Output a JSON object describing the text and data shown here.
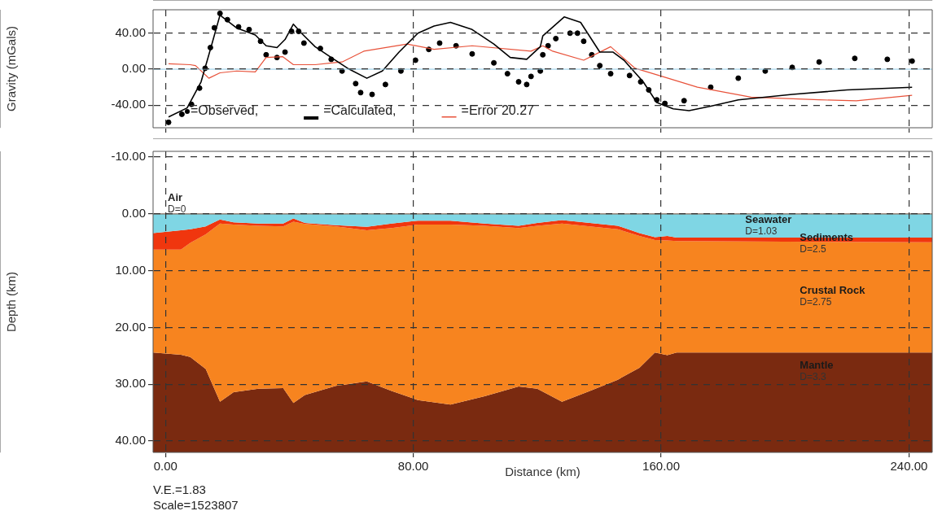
{
  "chart_data": [
    {
      "type": "line",
      "ylabel": "Gravity (mGals)",
      "xlim": [
        -4,
        247.5
      ],
      "ylim": [
        -65,
        66
      ],
      "xticks": [
        0,
        80,
        160,
        240
      ],
      "yticks": [
        {
          "value": -40,
          "label": "-40.00"
        },
        {
          "value": 0,
          "label": "0.00"
        },
        {
          "value": 40,
          "label": "40.00"
        }
      ],
      "tick_labels": "y",
      "grid": true,
      "legend": "bottom left",
      "ref_lines": [
        {
          "axis": "y",
          "value": 0,
          "color": "#8ecae6"
        }
      ],
      "series": [
        {
          "name": "=Observed,",
          "type": "scatter",
          "marker": "circle",
          "color": "#000000",
          "x": [
            1,
            5.3,
            8.4,
            11,
            12.8,
            14.5,
            15.8,
            17.6,
            20,
            23.6,
            27,
            30.7,
            32.5,
            36,
            38.6,
            40.7,
            43,
            44.7,
            50,
            53.5,
            57,
            61.4,
            63,
            66.7,
            71,
            76,
            80.7,
            85,
            88.5,
            93.8,
            99,
            106,
            110.4,
            114,
            116.6,
            118,
            121,
            121.8,
            123.5,
            126,
            130.6,
            133,
            135,
            137.6,
            140.2,
            143.7,
            149.8,
            153.4,
            156,
            158.6,
            161.2,
            167.4,
            176,
            184.9,
            193.6,
            202.3,
            211,
            222.5,
            233,
            241
          ],
          "values": [
            -59,
            -50,
            -39,
            -21,
            1,
            24,
            46,
            62,
            55,
            47,
            44,
            31,
            16,
            13,
            19,
            42,
            42,
            29,
            23,
            11,
            -2,
            -16,
            -26,
            -28,
            -17,
            -2,
            10,
            22,
            29,
            26,
            17,
            7,
            -5,
            -14,
            -17,
            -8,
            -2,
            16,
            26,
            34,
            40,
            40,
            31,
            16,
            4,
            -5,
            -7,
            -14,
            -23,
            -34,
            -38,
            -35,
            -20,
            -10,
            -2,
            2,
            8,
            12,
            11,
            9
          ]
        },
        {
          "name": "=Calculated,",
          "type": "line",
          "color": "#000000",
          "x": [
            1,
            7,
            11.5,
            15,
            17.6,
            22.9,
            29,
            32.5,
            36,
            38.6,
            41.3,
            43.9,
            48.3,
            53.5,
            58.8,
            65,
            70,
            75.4,
            81.5,
            86.7,
            92,
            99,
            106,
            111.3,
            116.6,
            121,
            121.8,
            128.7,
            134,
            140.2,
            144.5,
            148,
            154.2,
            158.6,
            163.9,
            169,
            176,
            184.9,
            202.3,
            220,
            241
          ],
          "values": [
            -53,
            -43,
            -14,
            28,
            60,
            46,
            38,
            26,
            24,
            33,
            50,
            40,
            25,
            13,
            1,
            -10,
            -2,
            19,
            40,
            48,
            52,
            44,
            28,
            13,
            11,
            25,
            37,
            58,
            52,
            19,
            19,
            10,
            -14,
            -37,
            -44,
            -46,
            -41,
            -34,
            -28,
            -23,
            -20
          ]
        },
        {
          "name": "=Error 20.27",
          "type": "line",
          "color": "#e8523a",
          "x": [
            1,
            8,
            9.7,
            14,
            17.6,
            23,
            29,
            32.5,
            37.8,
            41.3,
            48.3,
            53.5,
            57,
            64,
            78,
            86.7,
            99,
            118,
            121.8,
            125,
            135,
            143.7,
            151.6,
            160.3,
            171.7,
            189,
            211,
            223,
            241
          ],
          "values": [
            6,
            5,
            4,
            -10,
            -4,
            -2,
            -3,
            13,
            14,
            5,
            5,
            7,
            8,
            20,
            28,
            22,
            26,
            20,
            26,
            20,
            10,
            25,
            1,
            -8,
            -20,
            -31,
            -34,
            -35,
            -29
          ]
        }
      ]
    },
    {
      "type": "area",
      "stacked": true,
      "xlabel": "Distance (km)",
      "ylabel": "Depth (km)",
      "xlim": [
        -4,
        247.5
      ],
      "ylim": [
        42,
        -11
      ],
      "xticks": [
        {
          "value": 0,
          "label": "0.00"
        },
        {
          "value": 80,
          "label": "80.00"
        },
        {
          "value": 160,
          "label": "160.00"
        },
        {
          "value": 240,
          "label": "240.00"
        }
      ],
      "yticks": [
        {
          "value": -10,
          "label": "-10.00"
        },
        {
          "value": 0,
          "label": "0.00"
        },
        {
          "value": 10,
          "label": "10.00"
        },
        {
          "value": 20,
          "label": "20.00"
        },
        {
          "value": 30,
          "label": "30.00"
        },
        {
          "value": 40,
          "label": "40.00"
        }
      ],
      "grid": true,
      "x": [
        -4,
        5,
        8,
        13,
        17.6,
        22,
        30,
        38,
        41.3,
        45,
        55,
        65,
        73,
        81.5,
        92,
        103,
        114,
        120,
        128,
        137,
        146,
        153,
        158,
        162,
        165,
        200,
        247.5
      ],
      "series": [
        {
          "name": "Air\nD=0",
          "type": "line",
          "color": "#8a6a5a",
          "x": [
            -4,
            247.5
          ],
          "values": [
            0,
            0
          ]
        },
        {
          "name": "Seawater\nD=1.03",
          "color": "#7fd6e4",
          "values": [
            3.4,
            2.9,
            2.7,
            2.2,
            1,
            1.5,
            1.7,
            1.7,
            0.8,
            1.6,
            2,
            2.3,
            1.7,
            1.2,
            1.2,
            1.7,
            2.1,
            1.6,
            1.1,
            1.6,
            2.1,
            3.4,
            4.1,
            3.9,
            4.2,
            4.2,
            4.2
          ]
        },
        {
          "name": "Sediments\nD=2.5",
          "color": "#f0360e",
          "values": [
            2.9,
            3.4,
            2.4,
            1.4,
            0.7,
            0.4,
            0.4,
            0.5,
            0.6,
            0.2,
            0.2,
            0.6,
            0.8,
            0.7,
            0.7,
            0.4,
            0.4,
            0.5,
            0.6,
            0.6,
            0.6,
            0.5,
            0.5,
            0.8,
            0.6,
            0.7,
            0.8
          ]
        },
        {
          "name": "Crustal Rock\nD=2.75",
          "color": "#f7841f",
          "values": [
            18.1,
            18.5,
            20.1,
            23.7,
            31.4,
            29.5,
            28.7,
            28.5,
            31.9,
            30.1,
            28.1,
            26.6,
            28.7,
            30.9,
            31.7,
            30,
            27.9,
            28.7,
            31.4,
            29,
            26.5,
            23.2,
            19.8,
            20.2,
            19.6,
            19.5,
            19.4
          ]
        },
        {
          "name": "Mantle\nD=3.3",
          "color": "#7a2a10",
          "values": [
            17.6,
            17.2,
            16.8,
            14.7,
            8.9,
            10.6,
            11.2,
            11.3,
            8.7,
            10.1,
            11.7,
            12.5,
            10.8,
            9.2,
            8.4,
            9.9,
            11.6,
            11.2,
            8.9,
            10.8,
            12.8,
            14.9,
            17.6,
            17.1,
            17.6,
            17.6,
            17.6
          ]
        }
      ],
      "annotations": [
        "V.E.=1.83",
        "Scale=1523807"
      ]
    }
  ]
}
